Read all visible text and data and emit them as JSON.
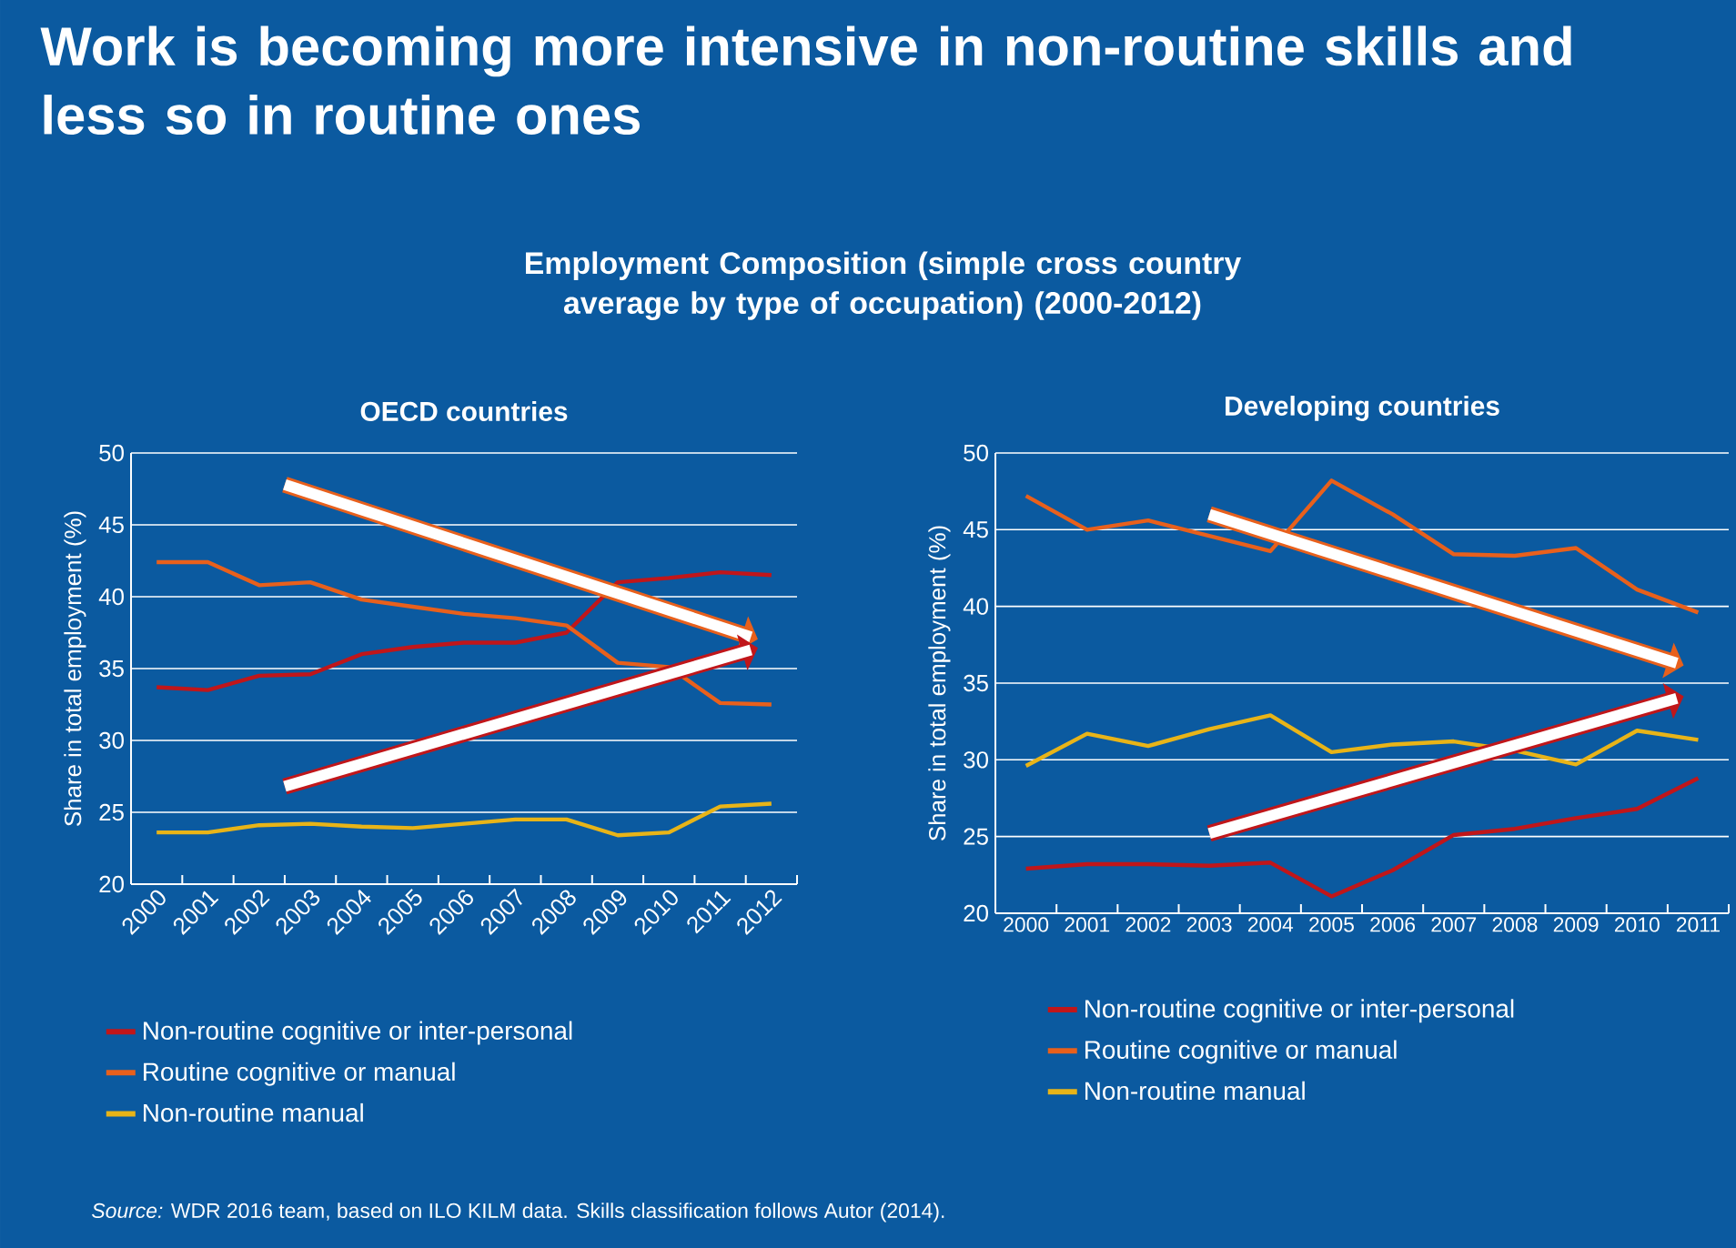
{
  "chart_data": [
    {
      "type": "line",
      "title": "OECD countries",
      "subtitle": "Employment Composition (simple cross country average by type of occupation) (2000-2012)",
      "annotations": [
        "Work is becoming more intensive in non-routine skills and less so in routine ones",
        "*Source:* WDR 2016 team, based on ILO KILM data. Skills classification follows Autor (2014)."
      ],
      "ylabel": "Share in total employment (%)",
      "categories": [
        "2000",
        "2001",
        "2002",
        "2003",
        "2004",
        "2005",
        "2006",
        "2007",
        "2008",
        "2009",
        "2010",
        "2011",
        "2012"
      ],
      "series": [
        {
          "name": "Non-routine cognitive or inter-personal",
          "color": "#c0161a",
          "values": [
            33.7,
            33.5,
            34.5,
            34.6,
            36.0,
            36.5,
            36.8,
            36.8,
            37.5,
            41.0,
            41.3,
            41.7,
            41.5
          ]
        },
        {
          "name": "Routine cognitive or manual",
          "color": "#e8601c",
          "values": [
            42.4,
            42.4,
            40.8,
            41.0,
            39.8,
            39.3,
            38.8,
            38.5,
            38.0,
            35.4,
            35.1,
            32.6,
            32.5
          ]
        },
        {
          "name": "Non-routine manual",
          "color": "#e8b418",
          "values": [
            23.6,
            23.6,
            24.1,
            24.2,
            24.0,
            23.9,
            24.2,
            24.5,
            24.5,
            23.4,
            23.6,
            25.4,
            25.6
          ]
        }
      ],
      "ylim": [
        20,
        50
      ],
      "yticks": [
        20,
        25,
        30,
        35,
        40,
        45,
        50
      ],
      "grid": "y",
      "legend": "bottom"
    },
    {
      "type": "line",
      "title": "Developing countries",
      "ylabel": "Share in total employment (%)",
      "categories": [
        "2000",
        "2001",
        "2002",
        "2003",
        "2004",
        "2005",
        "2006",
        "2007",
        "2008",
        "2009",
        "2010",
        "2011"
      ],
      "series": [
        {
          "name": "Non-routine cognitive or inter-personal",
          "color": "#c0161a",
          "values": [
            22.9,
            23.2,
            23.2,
            23.1,
            23.3,
            21.1,
            22.8,
            25.1,
            25.5,
            26.2,
            26.8,
            28.8
          ]
        },
        {
          "name": "Routine cognitive or manual",
          "color": "#e8601c",
          "values": [
            47.2,
            45.0,
            45.6,
            44.6,
            43.6,
            48.2,
            46.0,
            43.4,
            43.3,
            43.8,
            41.1,
            39.6
          ]
        },
        {
          "name": "Non-routine manual",
          "color": "#e8b418",
          "values": [
            29.6,
            31.7,
            30.9,
            32.0,
            32.9,
            30.5,
            31.0,
            31.2,
            30.6,
            29.7,
            31.9,
            31.3
          ]
        }
      ],
      "ylim": [
        20,
        50
      ],
      "yticks": [
        20,
        25,
        30,
        35,
        40,
        45,
        50
      ],
      "grid": "y",
      "legend": "bottom"
    }
  ]
}
